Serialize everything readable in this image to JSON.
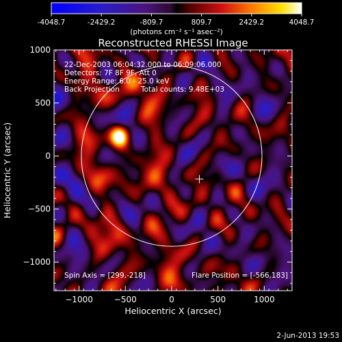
{
  "colorbar": {
    "tick_labels": [
      "-4048.7",
      "-2429.2",
      "-809.7",
      "809.7",
      "2429.2",
      "4048.7"
    ],
    "range": [
      -4048.7,
      4048.7
    ],
    "unit_label": "(photons cm⁻² s⁻¹ asec⁻²)"
  },
  "chart_data": {
    "type": "heatmap",
    "title": "Reconstructed RHESSI Image",
    "xlabel": "Heliocentric X (arcsec)",
    "ylabel": "Heliocentric Y (arcsec)",
    "xlim": [
      -1270,
      1300
    ],
    "ylim": [
      -1270,
      1000
    ],
    "x_ticks": [
      -1000,
      -500,
      0,
      500,
      1000
    ],
    "y_ticks": [
      -1000,
      -500,
      0,
      500,
      1000
    ],
    "x_tick_labels": [
      "−1000",
      "−500",
      "0",
      "500",
      "1000"
    ],
    "y_tick_labels": [
      "−1000",
      "−500",
      "0",
      "500",
      "1000"
    ],
    "annotations": [
      "22-Dec-2003 06:04:32.000 to 06:09:06.000",
      "Detectors: 7F 8F 9F, Att 0",
      "Energy Range: 6.0 - 25.0 keV",
      "Back Projection",
      "Total counts: 9.48E+03"
    ],
    "spin_axis": "Spin Axis = [299,-218]",
    "flare_position": "Flare Position = [-566,183]",
    "solar_disk": {
      "center": [
        0,
        0
      ],
      "radius_arcsec": 975
    },
    "spin_axis_point": [
      299,
      -218
    ],
    "bright_source": {
      "x": -566,
      "y": 183,
      "peak": 4048.7
    },
    "colormap": "blue-purple-red-yellow-white",
    "grid": false
  },
  "footer": {
    "date": "2-Jun-2013 19:53"
  }
}
